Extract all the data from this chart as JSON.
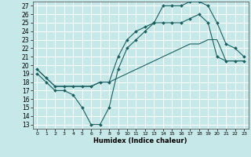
{
  "xlabel": "Humidex (Indice chaleur)",
  "bg_color": "#c6e8e8",
  "grid_color": "#ffffff",
  "line_color": "#1a6060",
  "xlim": [
    -0.5,
    23.5
  ],
  "ylim": [
    12.5,
    27.5
  ],
  "xticks": [
    0,
    1,
    2,
    3,
    4,
    5,
    6,
    7,
    8,
    9,
    10,
    11,
    12,
    13,
    14,
    15,
    16,
    17,
    18,
    19,
    20,
    21,
    22,
    23
  ],
  "yticks": [
    13,
    14,
    15,
    16,
    17,
    18,
    19,
    20,
    21,
    22,
    23,
    24,
    25,
    26,
    27
  ],
  "line1_x": [
    0,
    1,
    2,
    3,
    4,
    5,
    6,
    7,
    8,
    9,
    10,
    11,
    12,
    13,
    14,
    15,
    16,
    17,
    18,
    19,
    20,
    21,
    22,
    23
  ],
  "line1_y": [
    19,
    18,
    17,
    17,
    16.5,
    15,
    13,
    13,
    15,
    19.5,
    22,
    23,
    24,
    25,
    25,
    25,
    25,
    25.5,
    26,
    25,
    21,
    20.5,
    20.5,
    20.5
  ],
  "line2_x": [
    0,
    1,
    2,
    3,
    4,
    5,
    6,
    7,
    8,
    9,
    10,
    11,
    12,
    13,
    14,
    15,
    16,
    17,
    18,
    19,
    20,
    21,
    22,
    23
  ],
  "line2_y": [
    19.5,
    18.5,
    17.5,
    17.5,
    17.5,
    17.5,
    17.5,
    18,
    18,
    18.5,
    19,
    19.5,
    20,
    20.5,
    21,
    21.5,
    22,
    22.5,
    22.5,
    23,
    23,
    20.5,
    20.5,
    20.5
  ],
  "line3_x": [
    0,
    1,
    2,
    3,
    4,
    5,
    6,
    7,
    8,
    9,
    10,
    11,
    12,
    13,
    14,
    15,
    16,
    17,
    18,
    19,
    20,
    21,
    22,
    23
  ],
  "line3_y": [
    19.5,
    18.5,
    17.5,
    17.5,
    17.5,
    17.5,
    17.5,
    18,
    18,
    21,
    23,
    24,
    24.5,
    25,
    27,
    27,
    27,
    27.5,
    27.5,
    27,
    25,
    22.5,
    22,
    21
  ]
}
